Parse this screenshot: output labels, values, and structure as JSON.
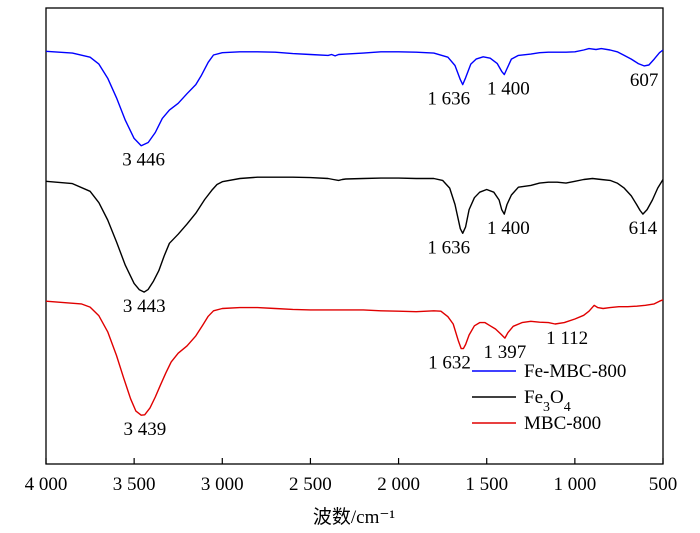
{
  "chart_data": {
    "type": "line",
    "title": "",
    "xlabel": "波数/cm⁻¹",
    "ylabel": "",
    "xlim": [
      4000,
      500
    ],
    "x_reversed": true,
    "xticks": [
      4000,
      3500,
      3000,
      2500,
      2000,
      1500,
      1000,
      500
    ],
    "xtick_labels": [
      "4 000",
      "3 500",
      "3 000",
      "2 500",
      "2 000",
      "1 500",
      "1 000",
      "500"
    ],
    "y_ticks_shown": false,
    "ylim": [
      0,
      100
    ],
    "grid": false,
    "legend_position": "bottom-right",
    "legend_labels": [
      "Fe-MBC-800",
      "Fe3O4",
      "MBC-800"
    ],
    "series": [
      {
        "name": "Fe-MBC-800",
        "color": "#0000ff",
        "points": [
          [
            4000,
            90.5
          ],
          [
            3850,
            90.1
          ],
          [
            3750,
            89.2
          ],
          [
            3700,
            87.7
          ],
          [
            3650,
            84.6
          ],
          [
            3600,
            80.3
          ],
          [
            3550,
            75.4
          ],
          [
            3500,
            71.4
          ],
          [
            3460,
            69.8
          ],
          [
            3420,
            70.5
          ],
          [
            3380,
            72.7
          ],
          [
            3340,
            75.8
          ],
          [
            3300,
            77.6
          ],
          [
            3250,
            79.1
          ],
          [
            3200,
            81.2
          ],
          [
            3150,
            83.2
          ],
          [
            3120,
            85.1
          ],
          [
            3080,
            88.1
          ],
          [
            3050,
            89.7
          ],
          [
            3000,
            90.2
          ],
          [
            2900,
            90.4
          ],
          [
            2800,
            90.4
          ],
          [
            2700,
            90.3
          ],
          [
            2600,
            90.0
          ],
          [
            2500,
            89.8
          ],
          [
            2400,
            89.6
          ],
          [
            2380,
            89.8
          ],
          [
            2360,
            89.5
          ],
          [
            2340,
            89.8
          ],
          [
            2300,
            89.9
          ],
          [
            2200,
            90.1
          ],
          [
            2100,
            90.4
          ],
          [
            2000,
            90.4
          ],
          [
            1900,
            90.3
          ],
          [
            1800,
            90.1
          ],
          [
            1720,
            89.2
          ],
          [
            1680,
            87.4
          ],
          [
            1650,
            84.3
          ],
          [
            1636,
            83.2
          ],
          [
            1620,
            84.7
          ],
          [
            1590,
            87.7
          ],
          [
            1560,
            88.8
          ],
          [
            1520,
            89.3
          ],
          [
            1480,
            89.0
          ],
          [
            1440,
            87.8
          ],
          [
            1415,
            86.1
          ],
          [
            1400,
            85.4
          ],
          [
            1385,
            86.7
          ],
          [
            1360,
            88.8
          ],
          [
            1320,
            89.6
          ],
          [
            1250,
            89.9
          ],
          [
            1200,
            90.2
          ],
          [
            1150,
            90.3
          ],
          [
            1050,
            90.3
          ],
          [
            1000,
            90.4
          ],
          [
            950,
            90.8
          ],
          [
            920,
            91.1
          ],
          [
            880,
            90.9
          ],
          [
            850,
            91.1
          ],
          [
            800,
            90.8
          ],
          [
            760,
            90.4
          ],
          [
            720,
            89.6
          ],
          [
            680,
            88.8
          ],
          [
            640,
            87.8
          ],
          [
            607,
            87.3
          ],
          [
            580,
            87.5
          ],
          [
            550,
            88.8
          ],
          [
            520,
            90.2
          ],
          [
            500,
            90.8
          ]
        ]
      },
      {
        "name": "Fe3O4",
        "color": "#000000",
        "points": [
          [
            4000,
            62.0
          ],
          [
            3850,
            61.5
          ],
          [
            3750,
            59.8
          ],
          [
            3700,
            57.3
          ],
          [
            3650,
            53.5
          ],
          [
            3600,
            48.7
          ],
          [
            3550,
            43.6
          ],
          [
            3500,
            39.6
          ],
          [
            3470,
            38.2
          ],
          [
            3443,
            37.7
          ],
          [
            3420,
            38.3
          ],
          [
            3390,
            40.1
          ],
          [
            3360,
            42.4
          ],
          [
            3330,
            45.6
          ],
          [
            3300,
            48.4
          ],
          [
            3250,
            50.4
          ],
          [
            3200,
            52.6
          ],
          [
            3150,
            55.0
          ],
          [
            3100,
            58.0
          ],
          [
            3060,
            60.0
          ],
          [
            3030,
            61.3
          ],
          [
            3000,
            61.9
          ],
          [
            2900,
            62.6
          ],
          [
            2800,
            62.9
          ],
          [
            2700,
            62.9
          ],
          [
            2600,
            62.9
          ],
          [
            2500,
            62.8
          ],
          [
            2400,
            62.6
          ],
          [
            2370,
            62.4
          ],
          [
            2340,
            62.2
          ],
          [
            2320,
            62.4
          ],
          [
            2300,
            62.5
          ],
          [
            2200,
            62.6
          ],
          [
            2100,
            62.7
          ],
          [
            2000,
            62.7
          ],
          [
            1900,
            62.6
          ],
          [
            1800,
            62.6
          ],
          [
            1750,
            62.2
          ],
          [
            1710,
            60.5
          ],
          [
            1680,
            56.9
          ],
          [
            1650,
            51.6
          ],
          [
            1636,
            50.6
          ],
          [
            1620,
            52.0
          ],
          [
            1600,
            55.8
          ],
          [
            1570,
            58.4
          ],
          [
            1540,
            59.6
          ],
          [
            1500,
            60.2
          ],
          [
            1460,
            59.6
          ],
          [
            1430,
            57.9
          ],
          [
            1415,
            55.8
          ],
          [
            1400,
            54.8
          ],
          [
            1385,
            56.9
          ],
          [
            1360,
            59.0
          ],
          [
            1320,
            60.7
          ],
          [
            1250,
            61.1
          ],
          [
            1200,
            61.6
          ],
          [
            1150,
            61.8
          ],
          [
            1100,
            61.8
          ],
          [
            1050,
            61.6
          ],
          [
            1000,
            62.0
          ],
          [
            950,
            62.4
          ],
          [
            900,
            62.6
          ],
          [
            850,
            62.4
          ],
          [
            800,
            62.2
          ],
          [
            760,
            61.6
          ],
          [
            720,
            60.5
          ],
          [
            680,
            58.8
          ],
          [
            650,
            56.9
          ],
          [
            630,
            55.6
          ],
          [
            614,
            54.8
          ],
          [
            590,
            55.8
          ],
          [
            560,
            57.9
          ],
          [
            530,
            60.5
          ],
          [
            500,
            62.4
          ]
        ]
      },
      {
        "name": "MBC-800",
        "color": "#e00000",
        "points": [
          [
            4000,
            35.7
          ],
          [
            3900,
            35.4
          ],
          [
            3800,
            35.1
          ],
          [
            3750,
            34.4
          ],
          [
            3700,
            32.5
          ],
          [
            3650,
            29.0
          ],
          [
            3600,
            23.8
          ],
          [
            3560,
            18.9
          ],
          [
            3520,
            14.3
          ],
          [
            3490,
            11.6
          ],
          [
            3460,
            10.7
          ],
          [
            3440,
            10.8
          ],
          [
            3410,
            12.3
          ],
          [
            3380,
            14.7
          ],
          [
            3350,
            17.4
          ],
          [
            3320,
            20.0
          ],
          [
            3290,
            22.4
          ],
          [
            3250,
            24.3
          ],
          [
            3200,
            25.9
          ],
          [
            3150,
            28.1
          ],
          [
            3110,
            30.5
          ],
          [
            3080,
            32.4
          ],
          [
            3050,
            33.6
          ],
          [
            3000,
            34.1
          ],
          [
            2900,
            34.3
          ],
          [
            2800,
            34.3
          ],
          [
            2700,
            34.1
          ],
          [
            2600,
            33.9
          ],
          [
            2500,
            33.8
          ],
          [
            2400,
            33.8
          ],
          [
            2300,
            33.8
          ],
          [
            2200,
            33.8
          ],
          [
            2100,
            33.6
          ],
          [
            2000,
            33.5
          ],
          [
            1900,
            33.4
          ],
          [
            1800,
            33.6
          ],
          [
            1760,
            33.5
          ],
          [
            1720,
            32.3
          ],
          [
            1690,
            30.7
          ],
          [
            1660,
            26.9
          ],
          [
            1645,
            25.3
          ],
          [
            1632,
            25.3
          ],
          [
            1620,
            26.2
          ],
          [
            1600,
            28.3
          ],
          [
            1570,
            30.3
          ],
          [
            1540,
            31.0
          ],
          [
            1510,
            31.0
          ],
          [
            1480,
            30.3
          ],
          [
            1450,
            29.6
          ],
          [
            1420,
            28.5
          ],
          [
            1397,
            27.6
          ],
          [
            1380,
            28.8
          ],
          [
            1350,
            30.2
          ],
          [
            1300,
            31.0
          ],
          [
            1250,
            31.3
          ],
          [
            1200,
            31.1
          ],
          [
            1150,
            31.0
          ],
          [
            1112,
            30.7
          ],
          [
            1060,
            31.0
          ],
          [
            1000,
            31.8
          ],
          [
            950,
            32.6
          ],
          [
            920,
            33.5
          ],
          [
            890,
            34.8
          ],
          [
            870,
            34.3
          ],
          [
            840,
            34.1
          ],
          [
            800,
            34.3
          ],
          [
            750,
            34.5
          ],
          [
            700,
            34.5
          ],
          [
            650,
            34.6
          ],
          [
            600,
            34.8
          ],
          [
            550,
            35.1
          ],
          [
            520,
            35.7
          ],
          [
            500,
            36.0
          ]
        ]
      }
    ],
    "annotations": [
      {
        "text": "3 446",
        "x": 3446,
        "y": 69.8,
        "series": "Fe-MBC-800"
      },
      {
        "text": "1 636",
        "x": 1636,
        "y": 83.2,
        "series": "Fe-MBC-800"
      },
      {
        "text": "1 400",
        "x": 1400,
        "y": 85.4,
        "series": "Fe-MBC-800"
      },
      {
        "text": "607",
        "x": 607,
        "y": 87.3,
        "series": "Fe-MBC-800"
      },
      {
        "text": "3 443",
        "x": 3443,
        "y": 37.7,
        "series": "Fe3O4"
      },
      {
        "text": "1 636",
        "x": 1636,
        "y": 50.6,
        "series": "Fe3O4"
      },
      {
        "text": "1 400",
        "x": 1400,
        "y": 54.8,
        "series": "Fe3O4"
      },
      {
        "text": "614",
        "x": 614,
        "y": 54.8,
        "series": "Fe3O4"
      },
      {
        "text": "3 439",
        "x": 3439,
        "y": 10.7,
        "series": "MBC-800"
      },
      {
        "text": "1 632",
        "x": 1632,
        "y": 25.3,
        "series": "MBC-800"
      },
      {
        "text": "1 397",
        "x": 1397,
        "y": 27.6,
        "series": "MBC-800"
      },
      {
        "text": "1 112",
        "x": 1112,
        "y": 30.7,
        "series": "MBC-800"
      }
    ]
  }
}
